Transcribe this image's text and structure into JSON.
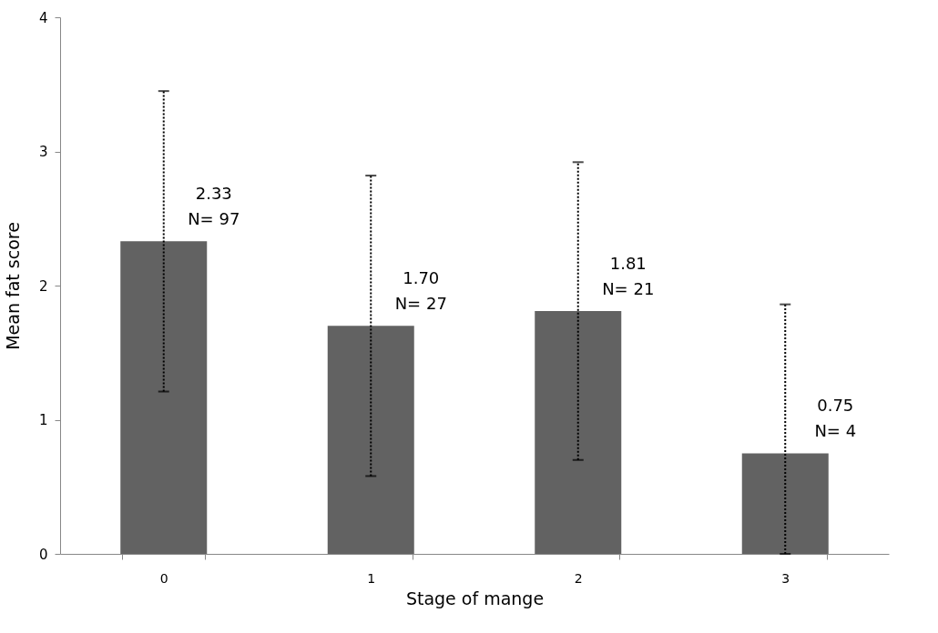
{
  "chart_data": {
    "type": "bar",
    "xlabel": "Stage of mange",
    "ylabel": "Mean fat score",
    "categories": [
      "0",
      "1",
      "2",
      "3"
    ],
    "values": [
      2.33,
      1.7,
      1.81,
      0.75
    ],
    "color": "#626262",
    "errors": [
      1.12,
      1.12,
      1.11,
      [
        0,
        1.86
      ]
    ],
    "value_labels": [
      "2.33\nN= 97",
      "1.70\nN= 27",
      "1.81\nN= 21",
      "0.75\nN= 4"
    ],
    "ylim": [
      0,
      4
    ],
    "yticks": [
      0,
      1,
      2,
      3,
      4
    ],
    "grid": false
  }
}
